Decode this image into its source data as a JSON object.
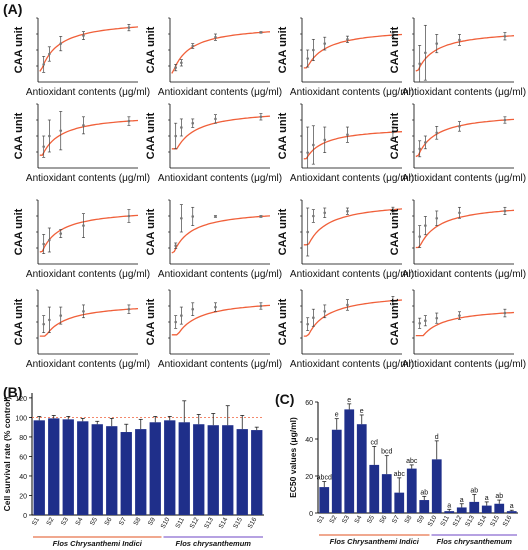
{
  "panels": {
    "a_label": "(A)",
    "b_label": "(B)",
    "c_label": "(C)"
  },
  "colors": {
    "curve": "#f0603a",
    "bar": "#1f2f8a",
    "axis": "#000000",
    "group1_line": "#e8744c",
    "group2_line": "#8a6ad0",
    "ref_line": "#f0603a"
  },
  "chart_data": [
    {
      "type": "scatter",
      "panel": "A",
      "xlabel": "Antioxidant contents (μg/ml)",
      "ylabel": "CAA unit",
      "subplots": [
        {
          "x": [
            3.125,
            6.25,
            12.5,
            25,
            50
          ],
          "y": [
            22,
            35,
            48,
            58,
            68
          ],
          "err": [
            10,
            9,
            9,
            5,
            4
          ],
          "ylim": [
            0,
            80
          ]
        },
        {
          "x": [
            3.125,
            6.25,
            12.5,
            25,
            50
          ],
          "y": [
            18,
            24,
            45,
            56,
            62
          ],
          "err": [
            4,
            4,
            3,
            4,
            1
          ],
          "ylim": [
            0,
            80
          ]
        },
        {
          "x": [
            3.125,
            6.25,
            12.5,
            25,
            50
          ],
          "y": [
            22,
            30,
            36,
            40,
            44
          ],
          "err": [
            8,
            10,
            6,
            3,
            2
          ],
          "ylim": [
            0,
            60
          ]
        },
        {
          "x": [
            3.125,
            6.25,
            12.5,
            25,
            50
          ],
          "y": [
            20,
            32,
            42,
            46,
            50
          ],
          "err": [
            20,
            30,
            10,
            6,
            4
          ],
          "ylim": [
            0,
            70
          ]
        },
        {
          "x": [
            3.125,
            6.25,
            12.5,
            25,
            50
          ],
          "y": [
            20,
            30,
            35,
            40,
            44
          ],
          "err": [
            10,
            15,
            18,
            8,
            4
          ],
          "ylim": [
            0,
            60
          ]
        },
        {
          "x": [
            3.125,
            6.25,
            12.5,
            25,
            50
          ],
          "y": [
            30,
            38,
            42,
            46,
            48
          ],
          "err": [
            12,
            8,
            4,
            4,
            3
          ],
          "ylim": [
            0,
            60
          ]
        },
        {
          "x": [
            3.125,
            6.25,
            12.5,
            25,
            50
          ],
          "y": [
            12,
            18,
            22,
            26,
            28
          ],
          "err": [
            20,
            15,
            10,
            6,
            4
          ],
          "ylim": [
            0,
            50
          ]
        },
        {
          "x": [
            3.125,
            6.25,
            12.5,
            25,
            50
          ],
          "y": [
            24,
            32,
            44,
            52,
            60
          ],
          "err": [
            10,
            8,
            8,
            6,
            4
          ],
          "ylim": [
            0,
            80
          ]
        },
        {
          "x": [
            3.125,
            6.25,
            12.5,
            25,
            50
          ],
          "y": [
            25,
            30,
            38,
            48,
            60
          ],
          "err": [
            12,
            15,
            5,
            15,
            8
          ],
          "ylim": [
            0,
            80
          ]
        },
        {
          "x": [
            3.125,
            6.25,
            12.5,
            25,
            50
          ],
          "y": [
            20,
            50,
            52,
            52,
            52
          ],
          "err": [
            3,
            15,
            10,
            1,
            1
          ],
          "ylim": [
            0,
            70
          ]
        },
        {
          "x": [
            3.125,
            6.25,
            12.5,
            25,
            50
          ],
          "y": [
            40,
            60,
            64,
            66,
            68
          ],
          "err": [
            30,
            8,
            6,
            4,
            3
          ],
          "ylim": [
            0,
            80
          ]
        },
        {
          "x": [
            3.125,
            6.25,
            12.5,
            25,
            50
          ],
          "y": [
            30,
            42,
            50,
            56,
            58
          ],
          "err": [
            12,
            10,
            8,
            6,
            4
          ],
          "ylim": [
            0,
            70
          ]
        },
        {
          "x": [
            3.125,
            6.25,
            12.5,
            25,
            50
          ],
          "y": [
            28,
            32,
            36,
            40,
            42
          ],
          "err": [
            8,
            12,
            8,
            6,
            4
          ],
          "ylim": [
            0,
            60
          ]
        },
        {
          "x": [
            3.125,
            6.25,
            12.5,
            25,
            50
          ],
          "y": [
            30,
            36,
            42,
            44,
            45
          ],
          "err": [
            6,
            8,
            6,
            4,
            3
          ],
          "ylim": [
            0,
            60
          ]
        },
        {
          "x": [
            3.125,
            6.25,
            12.5,
            25,
            50
          ],
          "y": [
            28,
            34,
            40,
            46,
            50
          ],
          "err": [
            6,
            8,
            6,
            5,
            4
          ],
          "ylim": [
            0,
            60
          ]
        },
        {
          "x": [
            3.125,
            6.25,
            12.5,
            25,
            50
          ],
          "y": [
            24,
            26,
            28,
            30,
            32
          ],
          "err": [
            4,
            4,
            4,
            3,
            3
          ],
          "ylim": [
            0,
            50
          ]
        }
      ]
    },
    {
      "type": "bar",
      "panel": "B",
      "ylabel": "Cell survival rate (% control)",
      "categories": [
        "S1",
        "S2",
        "S3",
        "S4",
        "S5",
        "S6",
        "S7",
        "S8",
        "S9",
        "S10",
        "S11",
        "S12",
        "S13",
        "S14",
        "S15",
        "S16"
      ],
      "values": [
        97,
        99,
        98,
        96,
        93,
        91,
        85,
        88,
        95,
        97,
        95,
        93,
        92,
        92,
        88,
        87
      ],
      "errors": [
        4,
        3,
        3,
        3,
        3,
        8,
        8,
        10,
        6,
        4,
        22,
        10,
        12,
        20,
        14,
        3
      ],
      "ylim": [
        0,
        125
      ],
      "yticks": [
        0,
        20,
        40,
        60,
        80,
        100,
        120
      ],
      "ref_line": 100,
      "groups": [
        {
          "label": "Flos Chrysanthemi Indici",
          "from": 0,
          "to": 8
        },
        {
          "label": "Flos chrysanthemum",
          "from": 9,
          "to": 15
        }
      ]
    },
    {
      "type": "bar",
      "panel": "C",
      "ylabel": "EC50 values (μg/ml)",
      "categories": [
        "S1",
        "S2",
        "S3",
        "S4",
        "S5",
        "S6",
        "S7",
        "S8",
        "S9",
        "S10",
        "S11",
        "S12",
        "S13",
        "S14",
        "S15",
        "S16"
      ],
      "values": [
        14,
        45,
        56,
        48,
        26,
        21,
        11,
        24,
        7,
        29,
        1,
        3,
        6,
        4,
        5,
        1
      ],
      "errors": [
        3,
        6,
        3,
        5,
        10,
        10,
        8,
        2,
        2,
        10,
        1,
        2,
        4,
        2,
        2,
        0.5
      ],
      "letters": [
        "abcd",
        "e",
        "e",
        "e",
        "cd",
        "bcd",
        "abc",
        "abc",
        "ab",
        "d",
        "a",
        "a",
        "ab",
        "a",
        "ab",
        "a"
      ],
      "ylim": [
        0,
        60
      ],
      "yticks": [
        0,
        20,
        40,
        60
      ],
      "groups": [
        {
          "label": "Flos Chrysanthemi Indici",
          "from": 0,
          "to": 8
        },
        {
          "label": "Flos chrysanthemum",
          "from": 9,
          "to": 15
        }
      ]
    }
  ]
}
